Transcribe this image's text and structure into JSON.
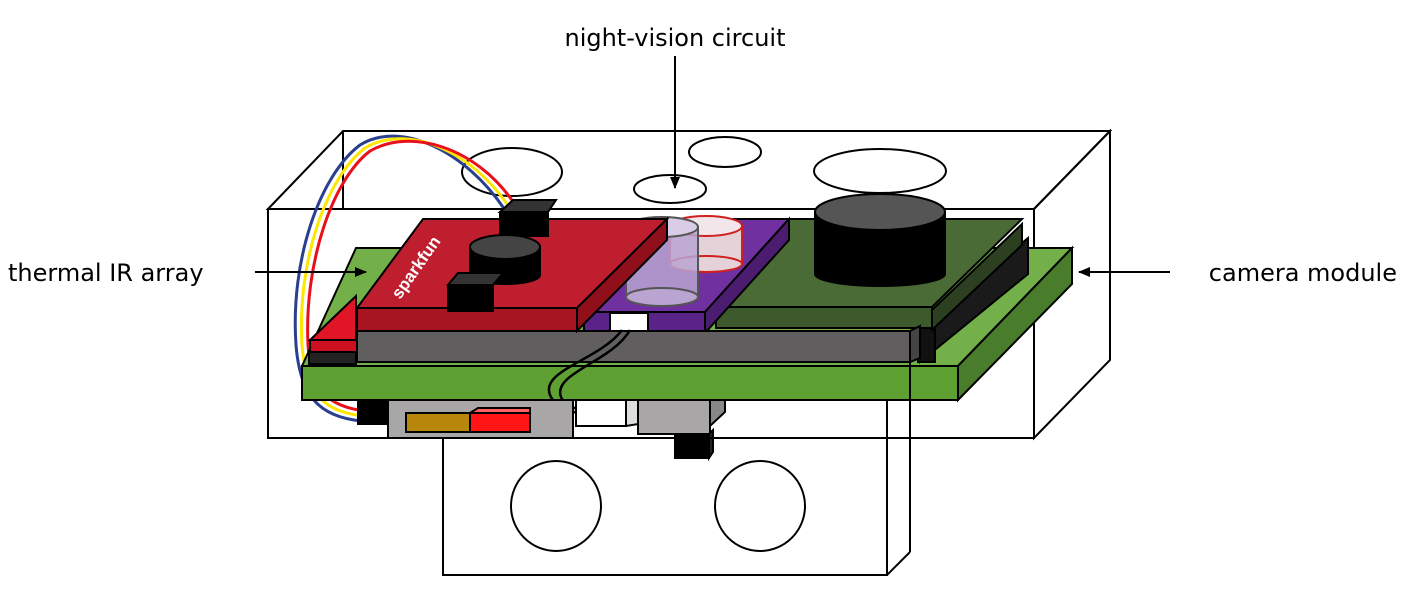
{
  "labels": {
    "night_vision": "night-vision circuit",
    "thermal": "thermal IR array",
    "camera": "camera module"
  },
  "board_brand": "sparkfun",
  "colors": {
    "thermal_board": "#be1e2d",
    "night_vision_board": "#7030a0",
    "camera_board": "#4a6b35",
    "carrier_board": "#5fa033",
    "spacer_board": "#605e5e",
    "wire_red": "#e8101a",
    "wire_yellow": "#ffe600",
    "wire_blue": "#2a3f8f"
  }
}
